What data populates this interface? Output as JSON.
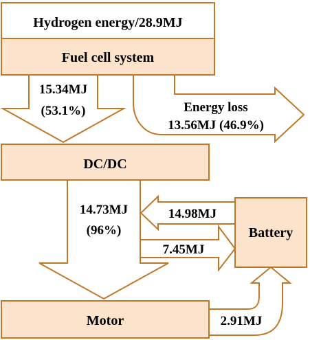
{
  "nodes": {
    "hydrogen": "Hydrogen energy/28.9MJ",
    "fuel_cell": "Fuel cell system",
    "dcdc": "DC/DC",
    "motor": "Motor",
    "battery": "Battery"
  },
  "flows": {
    "fc_to_dcdc_value": "15.34MJ",
    "fc_to_dcdc_pct": "(53.1%)",
    "energy_loss_title": "Energy loss",
    "energy_loss_value": "13.56MJ (46.9%)",
    "dcdc_to_motor_value": "14.73MJ",
    "dcdc_to_motor_pct": "(96%)",
    "battery_to_motor": "14.98MJ",
    "dcdc_to_battery": "7.45MJ",
    "motor_to_battery": "2.91MJ"
  },
  "colors": {
    "box_fill": "#fce4cc",
    "stroke": "#c07828"
  }
}
